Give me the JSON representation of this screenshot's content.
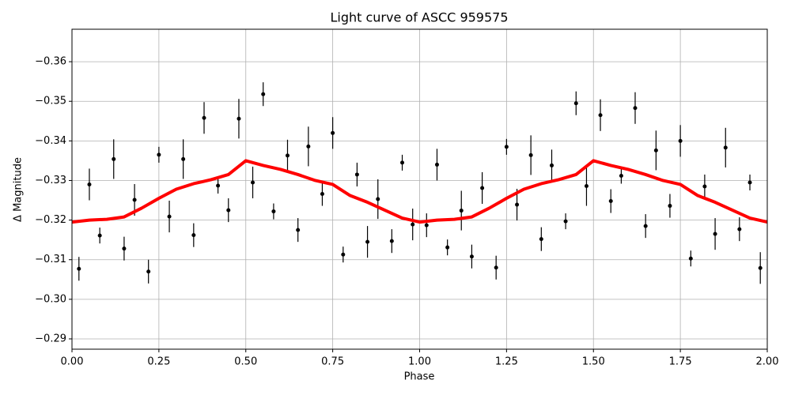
{
  "chart_data": {
    "type": "scatter",
    "title": "Light curve of ASCC 959575",
    "x_label": "Phase",
    "y_label": "Δ Magnitude",
    "xlim": [
      0,
      2
    ],
    "ylim": [
      -0.2874,
      -0.3682
    ],
    "grid": true,
    "xticks": [
      {
        "value": 0,
        "label": "0.00"
      },
      {
        "value": 0.25,
        "label": "0.25"
      },
      {
        "value": 0.5,
        "label": "0.50"
      },
      {
        "value": 0.75,
        "label": "0.75"
      },
      {
        "value": 1,
        "label": "1.00"
      },
      {
        "value": 1.25,
        "label": "1.25"
      },
      {
        "value": 1.5,
        "label": "1.50"
      },
      {
        "value": 1.75,
        "label": "1.75"
      },
      {
        "value": 2,
        "label": "2.00"
      }
    ],
    "yticks": [
      {
        "value": -0.36,
        "label": "−0.36"
      },
      {
        "value": -0.35,
        "label": "−0.35"
      },
      {
        "value": -0.34,
        "label": "−0.34"
      },
      {
        "value": -0.33,
        "label": "−0.33"
      },
      {
        "value": -0.32,
        "label": "−0.32"
      },
      {
        "value": -0.31,
        "label": "−0.31"
      },
      {
        "value": -0.3,
        "label": "−0.30"
      },
      {
        "value": -0.29,
        "label": "−0.29"
      }
    ],
    "series": [
      {
        "type": "errorbar",
        "color": "#000000",
        "x": [
          0.02,
          0.05,
          0.08,
          0.12,
          0.15,
          0.18,
          0.22,
          0.25,
          0.28,
          0.32,
          0.35,
          0.38,
          0.42,
          0.45,
          0.48,
          0.52,
          0.55,
          0.58,
          0.62,
          0.65,
          0.68,
          0.72,
          0.75,
          0.78,
          0.82,
          0.85,
          0.88,
          0.92,
          0.95,
          0.98,
          1.02,
          1.05,
          1.08,
          1.12,
          1.15,
          1.18,
          1.22,
          1.25,
          1.28,
          1.32,
          1.35,
          1.38,
          1.42,
          1.45,
          1.48,
          1.52,
          1.55,
          1.58,
          1.62,
          1.65,
          1.68,
          1.72,
          1.75,
          1.78,
          1.82,
          1.85,
          1.88,
          1.92,
          1.95,
          1.98
        ],
        "values": [
          -0.3077,
          -0.329,
          -0.3161,
          -0.3354,
          -0.3128,
          -0.3251,
          -0.307,
          -0.3365,
          -0.3209,
          -0.3354,
          -0.3162,
          -0.3458,
          -0.3287,
          -0.3225,
          -0.3456,
          -0.3295,
          -0.3518,
          -0.3222,
          -0.3363,
          -0.3175,
          -0.3386,
          -0.3266,
          -0.342,
          -0.3113,
          -0.3315,
          -0.3145,
          -0.3253,
          -0.3147,
          -0.3345,
          -0.3189,
          -0.3187,
          -0.334,
          -0.3131,
          -0.3224,
          -0.3108,
          -0.3281,
          -0.308,
          -0.3385,
          -0.3239,
          -0.3364,
          -0.3152,
          -0.3338,
          -0.3197,
          -0.3495,
          -0.3286,
          -0.3465,
          -0.3248,
          -0.3312,
          -0.3483,
          -0.3185,
          -0.3376,
          -0.3236,
          -0.34,
          -0.3103,
          -0.3285,
          -0.3165,
          -0.3383,
          -0.3177,
          -0.3295,
          -0.3079
        ],
        "errors": [
          0.003,
          0.004,
          0.002,
          0.005,
          0.003,
          0.004,
          0.003,
          0.002,
          0.004,
          0.005,
          0.003,
          0.004,
          0.002,
          0.003,
          0.005,
          0.004,
          0.003,
          0.002,
          0.004,
          0.003,
          0.005,
          0.003,
          0.004,
          0.002,
          0.003,
          0.004,
          0.005,
          0.003,
          0.002,
          0.004,
          0.003,
          0.004,
          0.002,
          0.005,
          0.003,
          0.004,
          0.003,
          0.002,
          0.004,
          0.005,
          0.003,
          0.004,
          0.002,
          0.003,
          0.005,
          0.004,
          0.003,
          0.002,
          0.004,
          0.003,
          0.005,
          0.003,
          0.004,
          0.002,
          0.003,
          0.004,
          0.005,
          0.003,
          0.002,
          0.004
        ]
      },
      {
        "type": "line",
        "color": "#ff0000",
        "x": [
          0,
          0.05,
          0.1,
          0.15,
          0.2,
          0.25,
          0.3,
          0.35,
          0.4,
          0.45,
          0.5,
          0.55,
          0.6,
          0.65,
          0.7,
          0.75,
          0.8,
          0.85,
          0.9,
          0.95,
          1,
          1.05,
          1.1,
          1.15,
          1.2,
          1.25,
          1.3,
          1.35,
          1.4,
          1.45,
          1.5,
          1.55,
          1.6,
          1.65,
          1.7,
          1.75,
          1.8,
          1.85,
          1.9,
          1.95,
          2
        ],
        "values": [
          -0.3195,
          -0.32,
          -0.3202,
          -0.3208,
          -0.323,
          -0.3255,
          -0.3278,
          -0.3292,
          -0.3302,
          -0.3315,
          -0.335,
          -0.3338,
          -0.3328,
          -0.3315,
          -0.33,
          -0.329,
          -0.3262,
          -0.3245,
          -0.3225,
          -0.3205,
          -0.3195,
          -0.32,
          -0.3202,
          -0.3208,
          -0.323,
          -0.3255,
          -0.3278,
          -0.3292,
          -0.3302,
          -0.3315,
          -0.335,
          -0.3338,
          -0.3328,
          -0.3315,
          -0.33,
          -0.329,
          -0.3262,
          -0.3245,
          -0.3225,
          -0.3205,
          -0.3195
        ]
      }
    ]
  }
}
